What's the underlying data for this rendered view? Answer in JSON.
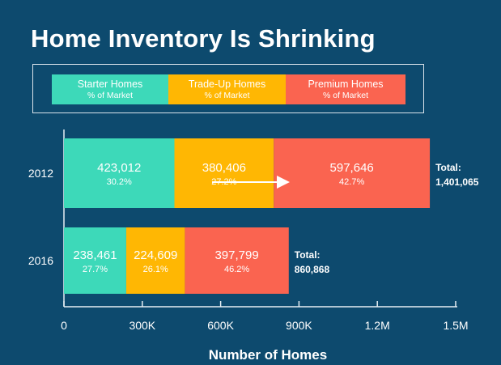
{
  "title": "Home Inventory Is Shrinking",
  "legend": [
    {
      "name": "Starter Homes",
      "sub": "% of Market",
      "color": "#3dd9b9"
    },
    {
      "name": "Trade-Up Homes",
      "sub": "% of Market",
      "color": "#ffb703"
    },
    {
      "name": "Premium Homes",
      "sub": "% of Market",
      "color": "#fa6450"
    }
  ],
  "chart_data": {
    "type": "bar",
    "orientation": "horizontal",
    "stacked": true,
    "title": "Home Inventory Is Shrinking",
    "xlabel": "Number of Homes",
    "ylabel": "",
    "xlim": [
      0,
      1500000
    ],
    "x_ticks": [
      {
        "value": 0,
        "label": "0"
      },
      {
        "value": 300000,
        "label": "300K"
      },
      {
        "value": 600000,
        "label": "600K"
      },
      {
        "value": 900000,
        "label": "900K"
      },
      {
        "value": 1200000,
        "label": "1.2M"
      },
      {
        "value": 1500000,
        "label": "1.5M"
      }
    ],
    "categories": [
      "2012",
      "2016"
    ],
    "series": [
      {
        "name": "Starter Homes",
        "values": [
          423012,
          238461
        ],
        "value_labels": [
          "423,012",
          "238,461"
        ],
        "pct_labels": [
          "30.2%",
          "27.7%"
        ],
        "color": "#3dd9b9"
      },
      {
        "name": "Trade-Up Homes",
        "values": [
          380406,
          224609
        ],
        "value_labels": [
          "380,406",
          "224,609"
        ],
        "pct_labels": [
          "27.2%",
          "26.1%"
        ],
        "color": "#ffb703"
      },
      {
        "name": "Premium Homes",
        "values": [
          597646,
          397799
        ],
        "value_labels": [
          "597,646",
          "397,799"
        ],
        "pct_labels": [
          "42.7%",
          "46.2%"
        ],
        "color": "#fa6450"
      }
    ],
    "totals": [
      {
        "label": "Total:",
        "value": "1,401,065"
      },
      {
        "label": "Total:",
        "value": "860,868"
      }
    ],
    "grid": false,
    "legend_position": "top"
  }
}
